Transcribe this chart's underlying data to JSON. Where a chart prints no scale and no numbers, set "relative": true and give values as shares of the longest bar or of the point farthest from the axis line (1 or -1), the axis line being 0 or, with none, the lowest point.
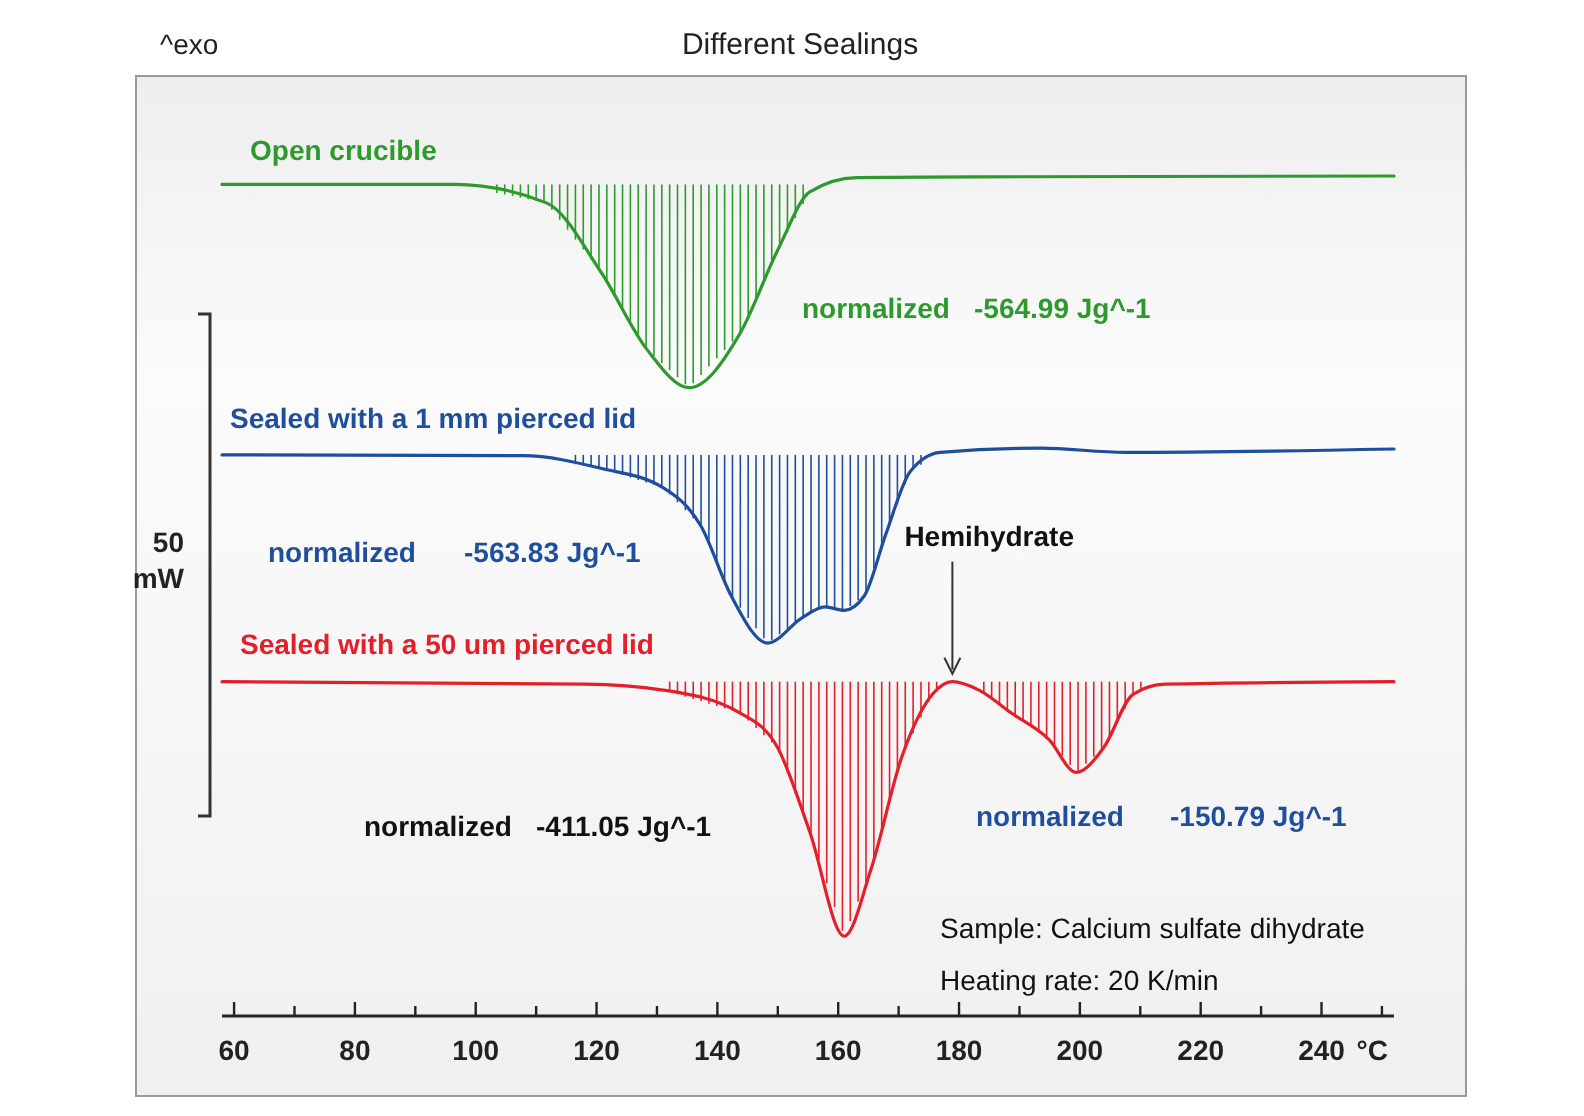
{
  "chart_data": {
    "type": "line",
    "title": "Different Sealings",
    "xlabel": "°C",
    "relative": true,
    "xlim": [
      58,
      252
    ],
    "xticks": [
      {
        "value": 60,
        "label": "60"
      },
      {
        "value": 70,
        "label": null
      },
      {
        "value": 80,
        "label": "80"
      },
      {
        "value": 90,
        "label": null
      },
      {
        "value": 100,
        "label": "100"
      },
      {
        "value": 110,
        "label": null
      },
      {
        "value": 120,
        "label": "120"
      },
      {
        "value": 130,
        "label": null
      },
      {
        "value": 140,
        "label": "140"
      },
      {
        "value": 150,
        "label": null
      },
      {
        "value": 160,
        "label": "160"
      },
      {
        "value": 170,
        "label": null
      },
      {
        "value": 180,
        "label": "180"
      },
      {
        "value": 190,
        "label": null
      },
      {
        "value": 200,
        "label": "200"
      },
      {
        "value": 210,
        "label": null
      },
      {
        "value": 220,
        "label": "220"
      },
      {
        "value": 230,
        "label": null
      },
      {
        "value": 240,
        "label": "240"
      },
      {
        "value": 250,
        "label": null
      }
    ],
    "grid": false,
    "marker": "none",
    "line_style": "solid",
    "tick_labels": "x",
    "series": [
      {
        "name": "Open crucible",
        "color": "#2e9a2e",
        "x": [
          58,
          96.4,
          111.7,
          120.7,
          128.4,
          135.3,
          143.7,
          150,
          155.3,
          163,
          183.3,
          252
        ],
        "values": [
          0.99,
          0.99,
          0.968,
          0.886,
          0.793,
          0.748,
          0.812,
          0.912,
          0.981,
          0.998,
          0.999,
          1.0
        ]
      },
      {
        "name": "Sealed with a 1 mm pierced lid",
        "color": "#1f4e9c",
        "x": [
          58,
          107.9,
          120.7,
          131,
          137.3,
          142.3,
          148.3,
          154,
          157.8,
          161,
          164.3,
          167.9,
          171.9,
          176.9,
          193.5,
          207.5,
          252
        ],
        "values": [
          0.668,
          0.667,
          0.652,
          0.629,
          0.583,
          0.5,
          0.444,
          0.474,
          0.487,
          0.483,
          0.5,
          0.574,
          0.648,
          0.671,
          0.676,
          0.671,
          0.675
        ]
      },
      {
        "name": "Sealed with a 50 um pierced lid",
        "color": "#e3202a",
        "x": [
          58,
          118,
          131,
          143.7,
          150,
          155.3,
          161,
          165.4,
          170.6,
          175.6,
          178.9,
          183.3,
          188.6,
          194.9,
          199.4,
          203.9,
          208.8,
          214.1,
          252
        ],
        "values": [
          0.398,
          0.395,
          0.388,
          0.361,
          0.319,
          0.219,
          0.095,
          0.174,
          0.31,
          0.383,
          0.398,
          0.388,
          0.361,
          0.329,
          0.29,
          0.319,
          0.383,
          0.395,
          0.398
        ]
      }
    ],
    "annotations": [
      "^exo",
      "50 mW",
      "normalized -564.99 Jg^-1",
      "normalized -563.83 Jg^-1",
      "normalized -411.05 Jg^-1",
      "normalized -150.79 Jg^-1",
      {
        "text": "Hemihydrate",
        "x": 178.9,
        "y": 0.398
      },
      "Sample: Calcium sulfate dihydrate",
      "Heating rate: 20 K/min"
    ]
  }
}
